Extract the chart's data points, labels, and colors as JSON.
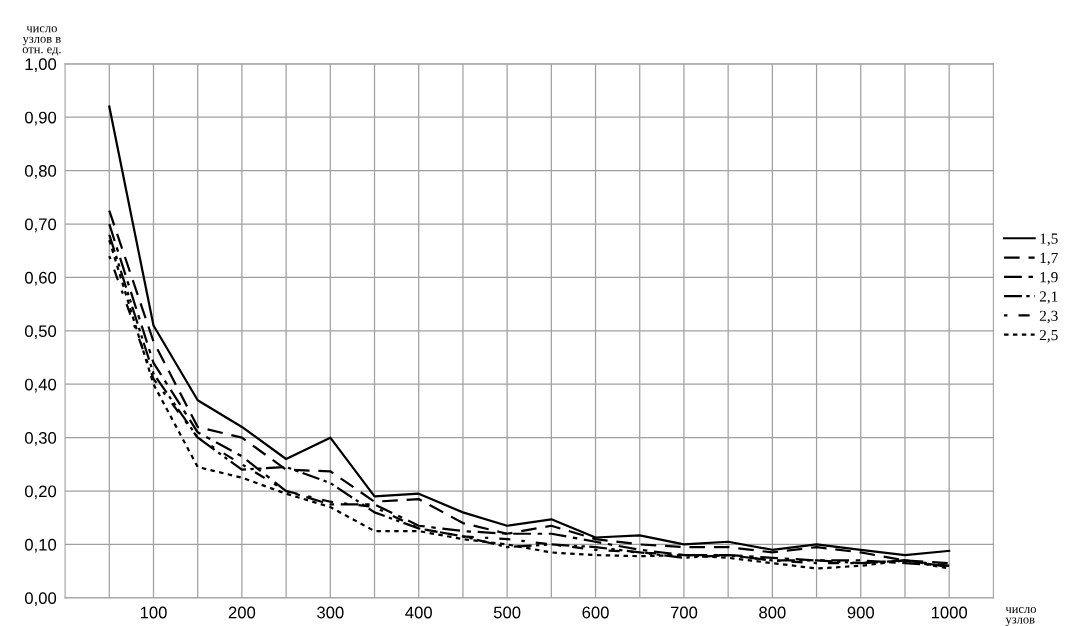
{
  "chart_data": {
    "type": "line",
    "ylabel": "число\nузлов в\nотн. ед.",
    "xlabel": "число\nузлов",
    "x": [
      50,
      100,
      150,
      200,
      250,
      300,
      350,
      400,
      450,
      500,
      550,
      600,
      650,
      700,
      750,
      800,
      850,
      900,
      950,
      1000
    ],
    "xlim": [
      0,
      1050
    ],
    "xticks": [
      {
        "value": 50,
        "label": null
      },
      100,
      {
        "value": 150,
        "label": null
      },
      200,
      {
        "value": 250,
        "label": null
      },
      300,
      {
        "value": 350,
        "label": null
      },
      400,
      {
        "value": 450,
        "label": null
      },
      500,
      {
        "value": 550,
        "label": null
      },
      600,
      {
        "value": 650,
        "label": null
      },
      700,
      {
        "value": 750,
        "label": null
      },
      800,
      {
        "value": 850,
        "label": null
      },
      900,
      {
        "value": 950,
        "label": null
      },
      1000
    ],
    "ylim": [
      0,
      1
    ],
    "yticks": [
      {
        "value": 0,
        "label": "0,00"
      },
      {
        "value": 0.1,
        "label": "0,10"
      },
      {
        "value": 0.2,
        "label": "0,20"
      },
      {
        "value": 0.3,
        "label": "0,30"
      },
      {
        "value": 0.4,
        "label": "0,40"
      },
      {
        "value": 0.5,
        "label": "0,50"
      },
      {
        "value": 0.6,
        "label": "0,60"
      },
      {
        "value": 0.7,
        "label": "0,70"
      },
      {
        "value": 0.8,
        "label": "0,80"
      },
      {
        "value": 0.9,
        "label": "0,90"
      },
      {
        "value": 1,
        "label": "1,00"
      }
    ],
    "grid": true,
    "legend": "right",
    "series": [
      {
        "name": "1,5",
        "color": "#000000",
        "line_style": "solid",
        "values": [
          0.92,
          0.51,
          0.37,
          0.32,
          0.26,
          0.3,
          0.19,
          0.195,
          0.16,
          0.135,
          0.147,
          0.113,
          0.117,
          0.1,
          0.105,
          0.09,
          0.1,
          0.09,
          0.08,
          0.088
        ]
      },
      {
        "name": "1,7",
        "color": "#000000",
        "line_style": "dashed",
        "values": [
          0.725,
          0.48,
          0.32,
          0.3,
          0.24,
          0.237,
          0.18,
          0.185,
          0.14,
          0.12,
          0.135,
          0.11,
          0.1,
          0.095,
          0.095,
          0.085,
          0.095,
          0.085,
          0.07,
          0.065
        ]
      },
      {
        "name": "1,9",
        "color": "#000000",
        "line_style": "dashdot",
        "values": [
          0.7,
          0.44,
          0.31,
          0.265,
          0.2,
          0.175,
          0.175,
          0.135,
          0.125,
          0.12,
          0.12,
          0.105,
          0.09,
          0.08,
          0.08,
          0.075,
          0.07,
          0.07,
          0.065,
          0.06
        ]
      },
      {
        "name": "2,1",
        "color": "#000000",
        "line_style": "dashdotdot",
        "values": [
          0.68,
          0.42,
          0.3,
          0.24,
          0.245,
          0.215,
          0.16,
          0.13,
          0.115,
          0.095,
          0.1,
          0.095,
          0.085,
          0.075,
          0.08,
          0.07,
          0.07,
          0.065,
          0.07,
          0.058
        ]
      },
      {
        "name": "2,3",
        "color": "#000000",
        "line_style": "dotdash",
        "values": [
          0.64,
          0.41,
          0.3,
          0.25,
          0.2,
          0.18,
          0.17,
          0.13,
          0.115,
          0.11,
          0.1,
          0.09,
          0.085,
          0.08,
          0.08,
          0.07,
          0.065,
          0.065,
          0.07,
          0.06
        ]
      },
      {
        "name": "2,5",
        "color": "#000000",
        "line_style": "dotted",
        "values": [
          0.67,
          0.4,
          0.245,
          0.225,
          0.195,
          0.17,
          0.125,
          0.125,
          0.11,
          0.1,
          0.085,
          0.08,
          0.078,
          0.08,
          0.075,
          0.065,
          0.055,
          0.06,
          0.07,
          0.055
        ]
      }
    ]
  }
}
